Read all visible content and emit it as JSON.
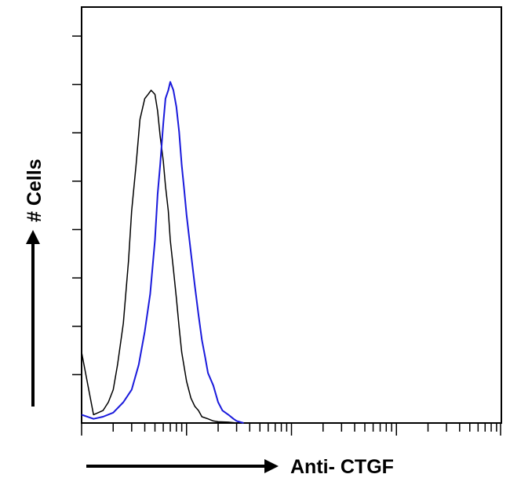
{
  "chart_data": {
    "type": "line",
    "title": "",
    "xlabel": "Anti- CTGF",
    "ylabel": "# Cells",
    "x_scale": "log",
    "xlim": [
      1,
      10000
    ],
    "ylim": [
      0,
      100
    ],
    "grid": false,
    "legend": "none",
    "series": [
      {
        "color": "#000000",
        "x": [
          1,
          1.3,
          1.6,
          1.8,
          2,
          2.2,
          2.5,
          2.8,
          3.0,
          3.3,
          3.6,
          4.0,
          4.3,
          4.6,
          5.0,
          5.3,
          5.6,
          6.0,
          6.3,
          6.7,
          7.0,
          7.5,
          8.0,
          8.5,
          9.0,
          10,
          11,
          12,
          13,
          14,
          16,
          18,
          20,
          25,
          30
        ],
        "y": [
          17,
          2,
          3,
          5,
          8,
          14,
          24,
          39,
          51,
          62,
          73,
          78,
          79,
          80,
          79,
          75,
          69,
          63,
          57,
          51,
          44,
          37,
          30,
          23,
          17,
          10,
          6,
          4,
          3,
          1.5,
          1,
          0.5,
          0.3,
          0.2,
          0
        ]
      },
      {
        "color": "#1a1adc",
        "x": [
          1,
          1.3,
          1.6,
          2,
          2.5,
          3,
          3.5,
          4,
          4.5,
          5,
          5.3,
          5.6,
          6.0,
          6.3,
          6.7,
          7.0,
          7.5,
          8.0,
          8.5,
          9.0,
          9.5,
          10,
          11,
          12,
          13,
          14,
          15,
          16,
          18,
          20,
          22,
          25,
          28,
          30,
          35
        ],
        "y": [
          2,
          1,
          1.5,
          2.5,
          5,
          8,
          14,
          22,
          31,
          44,
          55,
          62,
          72,
          78,
          80,
          82,
          80,
          76,
          70,
          62,
          56,
          50,
          41,
          33,
          26,
          20,
          16,
          12,
          9,
          5,
          3,
          2,
          1,
          0.5,
          0
        ]
      }
    ]
  }
}
